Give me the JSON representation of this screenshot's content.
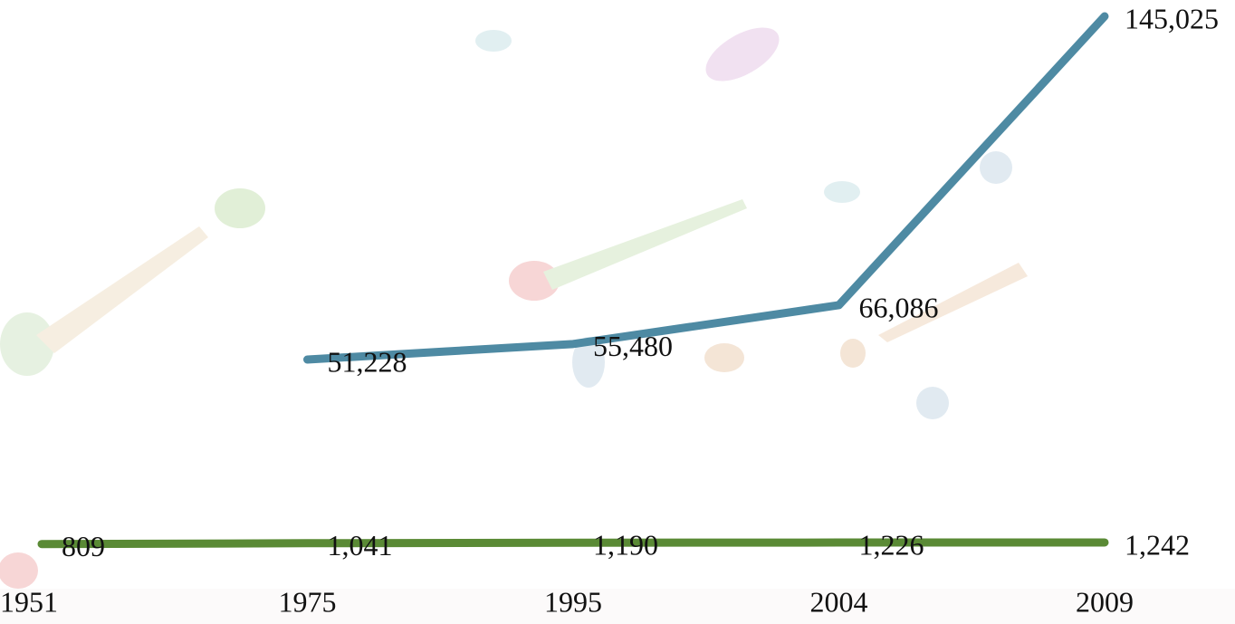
{
  "chart_data": {
    "type": "line",
    "categories": [
      "1951",
      "1975",
      "1995",
      "2004",
      "2009"
    ],
    "series": [
      {
        "color": "#4e8aa3",
        "values": [
          null,
          51228,
          55480,
          66086,
          145025
        ],
        "value_labels": [
          null,
          "51,228",
          "55,480",
          "66,086",
          "145,025"
        ]
      },
      {
        "color": "#5a8a35",
        "values": [
          809,
          1041,
          1190,
          1226,
          1242
        ],
        "value_labels": [
          "809",
          "1,041",
          "1,190",
          "1,226",
          "1,242"
        ]
      }
    ]
  }
}
